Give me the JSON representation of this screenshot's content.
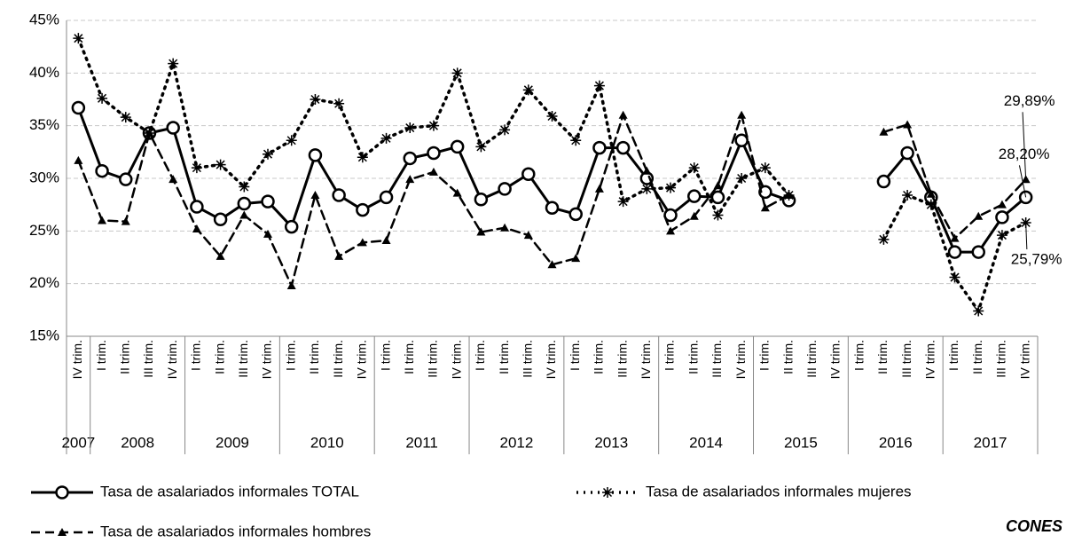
{
  "chart_data": {
    "type": "line",
    "categories": [
      "IV trim.",
      "I trim.",
      "II trim.",
      "III trim.",
      "IV trim.",
      "I trim.",
      "II trim.",
      "III trim.",
      "IV trim.",
      "I trim.",
      "II trim.",
      "III trim.",
      "IV trim.",
      "I trim.",
      "II trim.",
      "III trim.",
      "IV trim.",
      "I trim.",
      "II trim.",
      "III trim.",
      "IV trim.",
      "I trim.",
      "II trim.",
      "III trim.",
      "IV trim.",
      "I trim.",
      "II trim.",
      "III trim.",
      "IV trim.",
      "I trim.",
      "II trim.",
      "III trim.",
      "IV trim.",
      "I trim.",
      "II trim.",
      "III trim.",
      "IV trim.",
      "I trim.",
      "II trim.",
      "III trim.",
      "IV trim."
    ],
    "years": [
      "2007",
      "2008",
      "2009",
      "2010",
      "2011",
      "2012",
      "2013",
      "2014",
      "2015",
      "2016",
      "2017"
    ],
    "series": [
      {
        "name": "Tasa de asalariados informales TOTAL",
        "color": "#000000",
        "dash": "solid",
        "marker": "circle",
        "values": [
          36.7,
          30.7,
          29.9,
          34.3,
          34.8,
          27.3,
          26.1,
          27.6,
          27.8,
          25.4,
          32.2,
          28.4,
          27.0,
          28.2,
          31.9,
          32.4,
          33.0,
          28.0,
          29.0,
          30.4,
          27.2,
          26.6,
          32.9,
          32.9,
          30.0,
          26.5,
          28.3,
          28.2,
          33.6,
          28.7,
          27.9,
          null,
          null,
          null,
          29.7,
          32.4,
          28.2,
          23.0,
          23.0,
          26.3,
          28.2
        ],
        "value_labels": [
          null,
          null,
          null,
          null,
          null,
          null,
          null,
          null,
          null,
          null,
          null,
          null,
          null,
          null,
          null,
          null,
          null,
          null,
          null,
          null,
          null,
          null,
          null,
          null,
          null,
          null,
          null,
          null,
          null,
          null,
          null,
          null,
          null,
          null,
          null,
          null,
          null,
          null,
          null,
          null,
          "28,20%"
        ]
      },
      {
        "name": "Tasa de asalariados informales mujeres",
        "color": "#000000",
        "dash": "dotted",
        "marker": "asterisk",
        "values": [
          43.3,
          37.6,
          35.8,
          34.3,
          40.9,
          31.0,
          31.3,
          29.2,
          32.3,
          33.6,
          37.5,
          37.1,
          32.0,
          33.8,
          34.8,
          35.0,
          40.0,
          33.0,
          34.6,
          38.4,
          35.9,
          33.6,
          38.8,
          27.8,
          29.0,
          29.1,
          31.0,
          26.5,
          30.0,
          31.0,
          28.4,
          null,
          null,
          null,
          24.2,
          28.4,
          27.5,
          20.6,
          17.4,
          24.6,
          25.79
        ],
        "value_labels": [
          null,
          null,
          null,
          null,
          null,
          null,
          null,
          null,
          null,
          null,
          null,
          null,
          null,
          null,
          null,
          null,
          null,
          null,
          null,
          null,
          null,
          null,
          null,
          null,
          null,
          null,
          null,
          null,
          null,
          null,
          null,
          null,
          null,
          null,
          null,
          null,
          null,
          null,
          null,
          null,
          "25,79%"
        ]
      },
      {
        "name": "Tasa de asalariados informales hombres",
        "color": "#000000",
        "dash": "dashed",
        "marker": "triangle",
        "values": [
          31.7,
          26.0,
          25.9,
          34.3,
          29.9,
          25.2,
          22.6,
          26.5,
          24.7,
          19.8,
          28.4,
          22.6,
          23.9,
          24.1,
          29.9,
          30.6,
          28.6,
          24.9,
          25.3,
          24.6,
          21.8,
          22.4,
          29.0,
          36.0,
          30.7,
          25.0,
          26.4,
          29.3,
          36.0,
          27.2,
          28.4,
          null,
          null,
          null,
          34.4,
          35.1,
          28.5,
          24.3,
          26.4,
          27.5,
          29.89
        ],
        "value_labels": [
          null,
          null,
          null,
          null,
          null,
          null,
          null,
          null,
          null,
          null,
          null,
          null,
          null,
          null,
          null,
          null,
          null,
          null,
          null,
          null,
          null,
          null,
          null,
          null,
          null,
          null,
          null,
          null,
          null,
          null,
          null,
          null,
          null,
          null,
          null,
          null,
          null,
          null,
          null,
          null,
          "29,89%"
        ]
      }
    ],
    "ylim": [
      15,
      45
    ],
    "yticks": [
      {
        "value": 15,
        "label": "15%"
      },
      {
        "value": 20,
        "label": "20%"
      },
      {
        "value": 25,
        "label": "25%"
      },
      {
        "value": 30,
        "label": "30%"
      },
      {
        "value": 35,
        "label": "35%"
      },
      {
        "value": 40,
        "label": "40%"
      },
      {
        "value": 45,
        "label": "45%"
      }
    ],
    "grid": true,
    "source": "CONES"
  }
}
